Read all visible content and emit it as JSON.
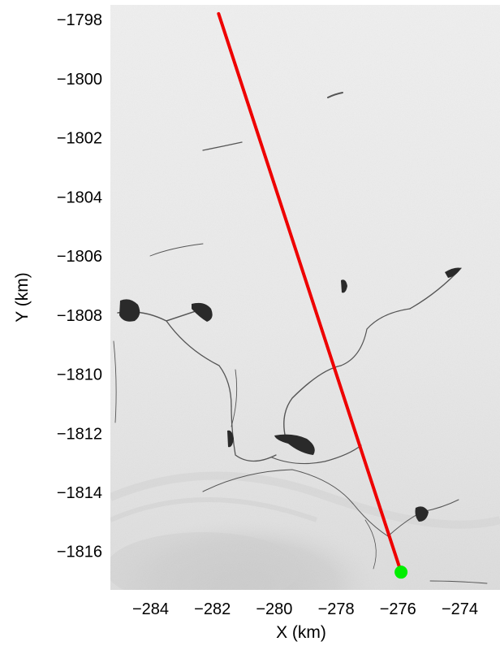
{
  "chart_data": {
    "type": "scatter",
    "title": "",
    "xlabel": "X (km)",
    "ylabel": "Y (km)",
    "xlim": [
      -285.3,
      -272.7
    ],
    "ylim": [
      -1817.3,
      -1797.5
    ],
    "xticks": [
      -284,
      -282,
      -280,
      -278,
      -276,
      -274
    ],
    "yticks": [
      -1798,
      -1800,
      -1802,
      -1804,
      -1806,
      -1808,
      -1810,
      -1812,
      -1814,
      -1816
    ],
    "xtick_labels": [
      "−284",
      "−282",
      "−280",
      "−278",
      "−276",
      "−274"
    ],
    "ytick_labels": [
      "−1798",
      "−1800",
      "−1802",
      "−1804",
      "−1806",
      "−1808",
      "−1810",
      "−1812",
      "−1814",
      "−1816"
    ],
    "grid": false,
    "background": "grayscale satellite image of ice surface with dark crevasse features",
    "line": {
      "color": "#ee0000",
      "points": [
        {
          "x": -281.8,
          "y": -1797.8
        },
        {
          "x": -275.9,
          "y": -1816.7
        }
      ]
    },
    "marker": {
      "color": "#00ee00",
      "x": -275.9,
      "y": -1816.7
    }
  }
}
